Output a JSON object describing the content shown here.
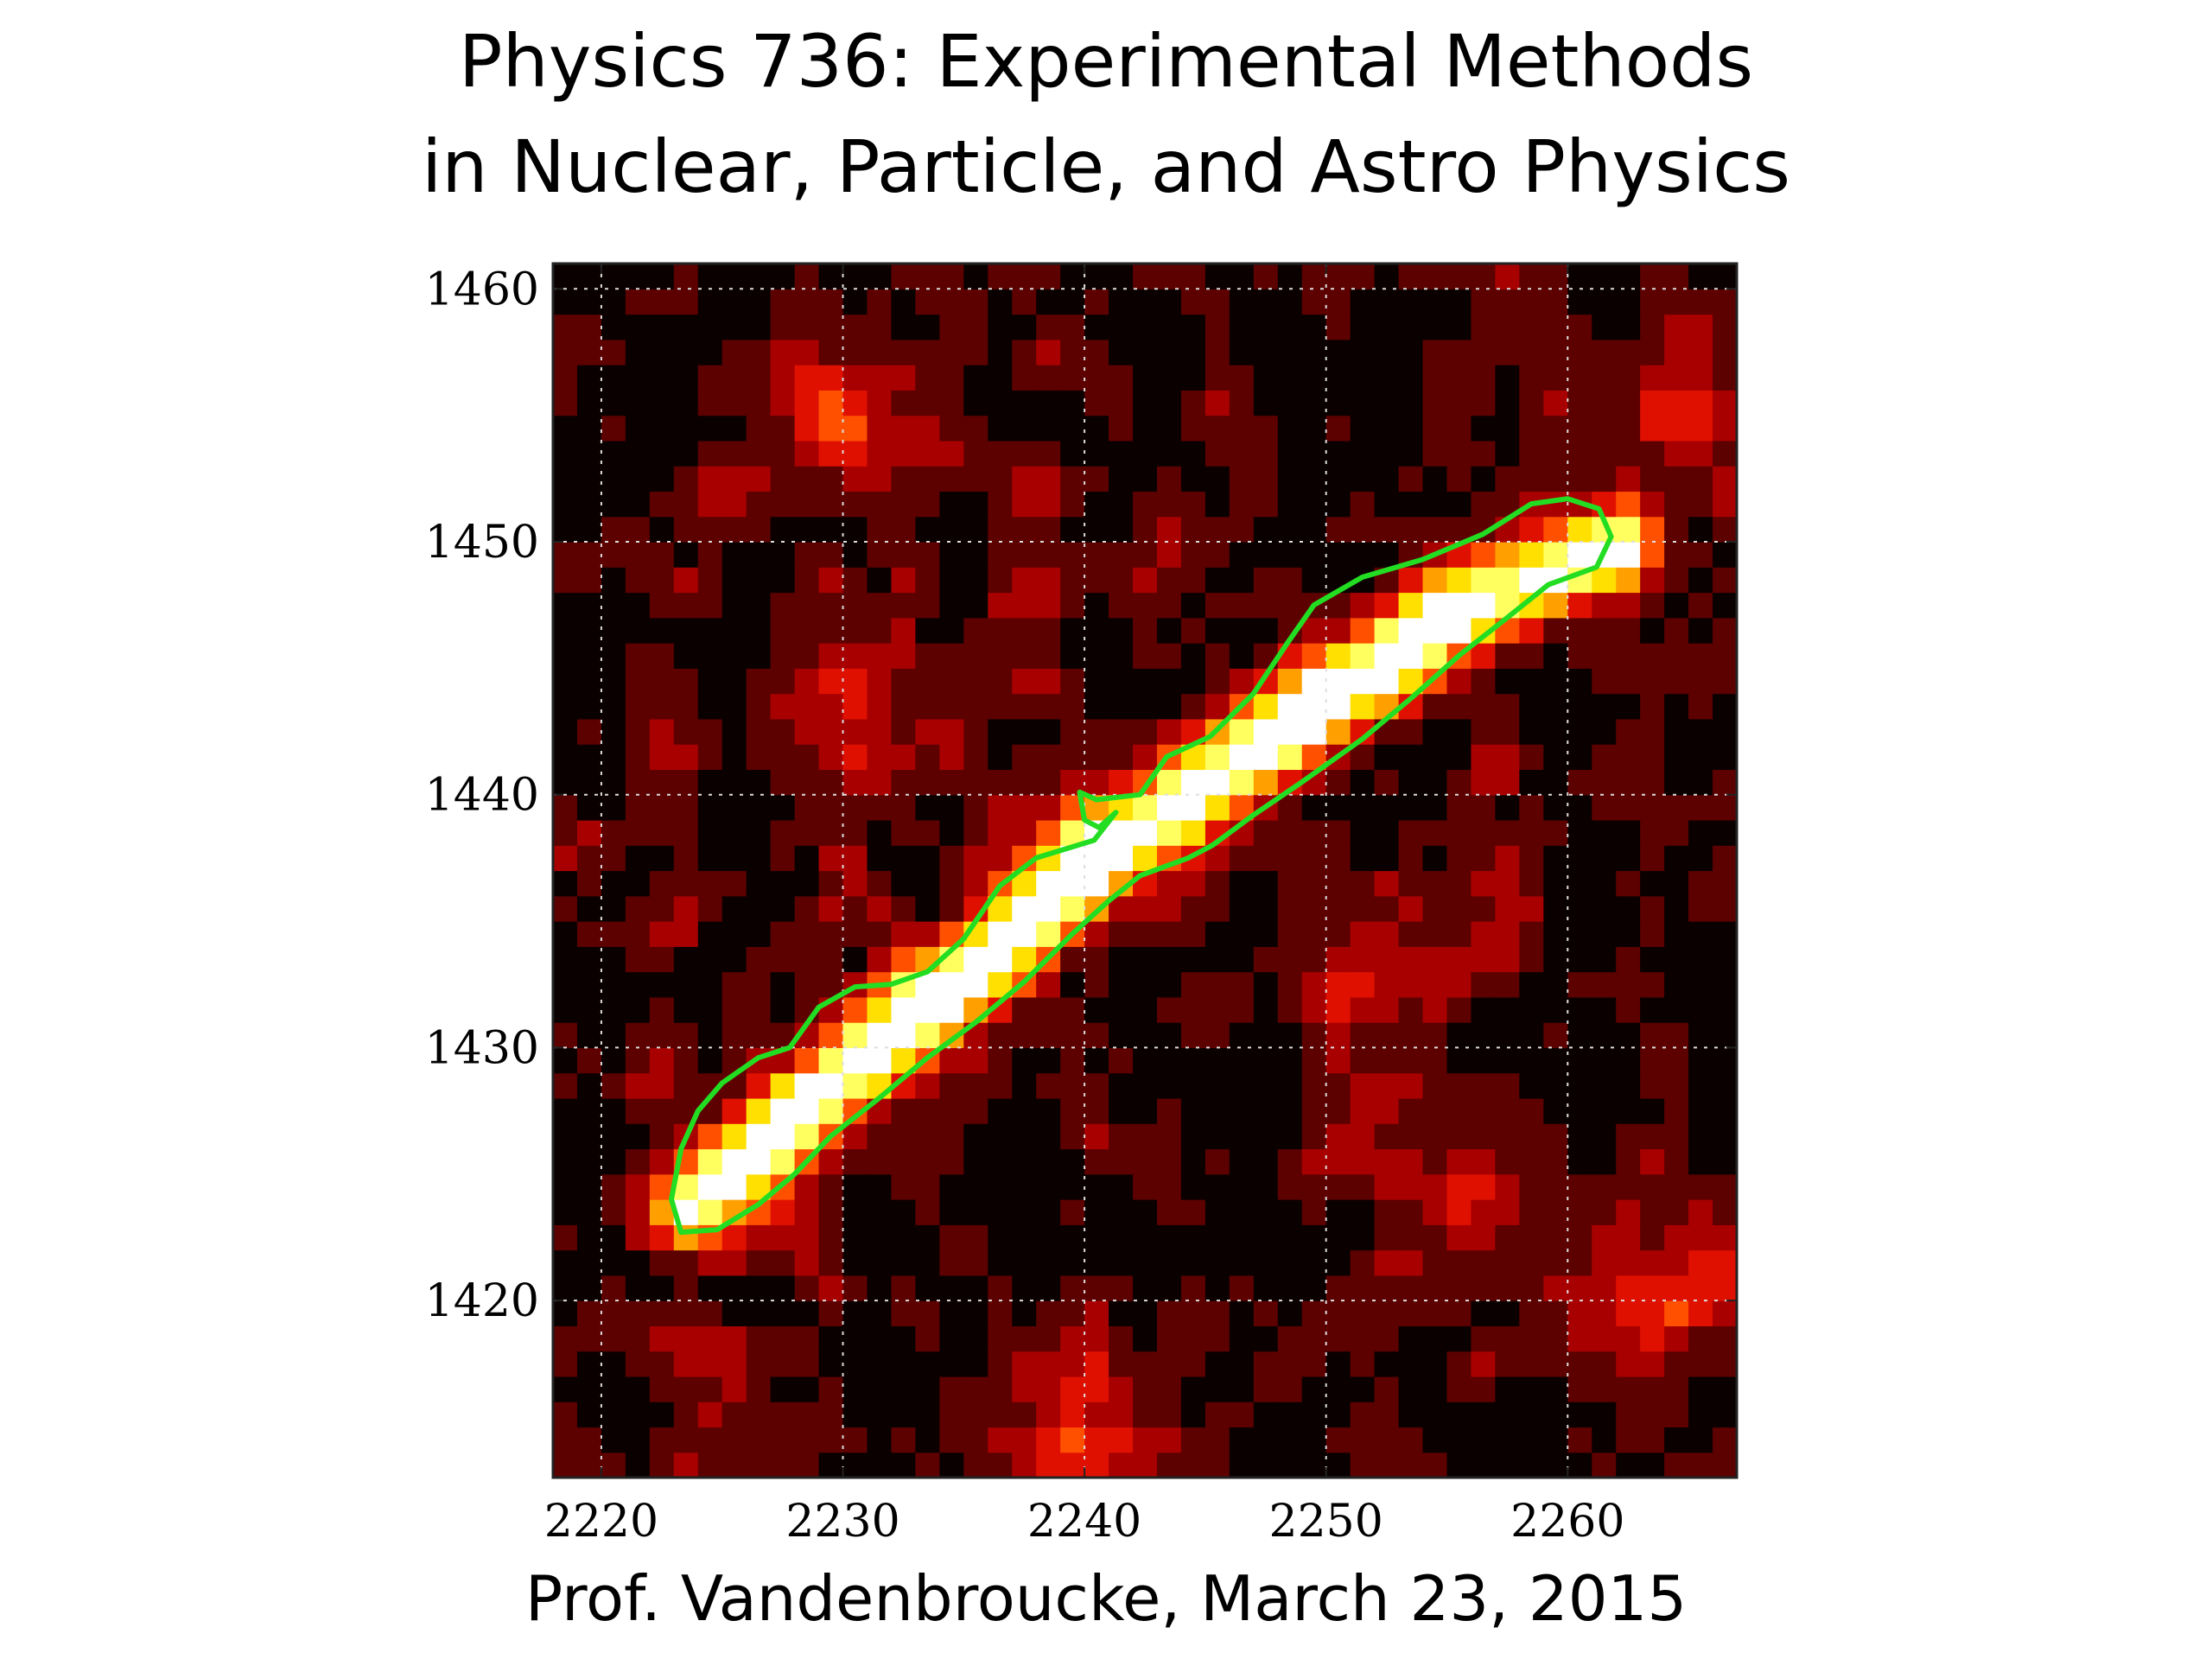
{
  "slide": {
    "title_line1": "Physics 736: Experimental Methods",
    "title_line2": "in Nuclear, Particle, and Astro Physics",
    "footer": "Prof. Vandenbroucke, March 23, 2015"
  },
  "chart_data": {
    "type": "heatmap",
    "title": "",
    "xlabel": "",
    "ylabel": "",
    "xlim": [
      2218,
      2267
    ],
    "ylim": [
      1413,
      1461
    ],
    "x_ticks": [
      2220,
      2230,
      2240,
      2250,
      2260
    ],
    "y_ticks": [
      1420,
      1430,
      1440,
      1450,
      1460
    ],
    "grid": true,
    "colormap": "hot",
    "colormap_stops": [
      "#0a0000",
      "#5c0000",
      "#a80000",
      "#e01000",
      "#ff5000",
      "#ffa000",
      "#ffe000",
      "#ffff60",
      "#ffffff"
    ],
    "track": {
      "description_points": [
        [
          2224,
          1424
        ],
        [
          2240,
          1437
        ],
        [
          2255,
          1447
        ],
        [
          2262,
          1450
        ]
      ],
      "peak_points": [
        [
          2227,
          1425
        ],
        [
          2232,
          1430
        ],
        [
          2247,
          1442
        ],
        [
          2254,
          1446
        ]
      ]
    },
    "bright_patches": [
      [
        2265,
        1455
      ],
      [
        2230,
        1443
      ],
      [
        2239,
        1438
      ],
      [
        2252,
        1433
      ],
      [
        2256,
        1424
      ],
      [
        2265,
        1421
      ],
      [
        2230,
        1455
      ],
      [
        2240,
        1415
      ]
    ],
    "contour": {
      "color": "#22dd22",
      "points": [
        [
          2223.3,
          1422.7
        ],
        [
          2224.8,
          1422.8
        ],
        [
          2226.5,
          1423.8
        ],
        [
          2228.0,
          1425.0
        ],
        [
          2229.5,
          1426.5
        ],
        [
          2231.5,
          1428.0
        ],
        [
          2233.5,
          1429.6
        ],
        [
          2235.5,
          1431.0
        ],
        [
          2237.5,
          1432.6
        ],
        [
          2239.5,
          1434.5
        ],
        [
          2241.0,
          1435.8
        ],
        [
          2242.3,
          1436.8
        ],
        [
          2244.3,
          1437.5
        ],
        [
          2245.3,
          1438.0
        ],
        [
          2247.0,
          1439.2
        ],
        [
          2249.0,
          1440.5
        ],
        [
          2251.5,
          1442.2
        ],
        [
          2253.5,
          1443.8
        ],
        [
          2255.5,
          1445.5
        ],
        [
          2257.5,
          1447.0
        ],
        [
          2259.2,
          1448.3
        ],
        [
          2261.2,
          1449.0
        ],
        [
          2261.8,
          1450.2
        ],
        [
          2261.3,
          1451.3
        ],
        [
          2260.0,
          1451.7
        ],
        [
          2258.5,
          1451.5
        ],
        [
          2256.5,
          1450.3
        ],
        [
          2254.0,
          1449.3
        ],
        [
          2251.5,
          1448.6
        ],
        [
          2249.5,
          1447.5
        ],
        [
          2248.4,
          1446.0
        ],
        [
          2247.0,
          1444.0
        ],
        [
          2245.2,
          1442.3
        ],
        [
          2243.4,
          1441.5
        ],
        [
          2242.3,
          1440.0
        ],
        [
          2240.5,
          1439.8
        ],
        [
          2239.8,
          1440.1
        ],
        [
          2240.0,
          1439.0
        ],
        [
          2240.6,
          1438.7
        ],
        [
          2241.3,
          1439.3
        ],
        [
          2240.4,
          1438.2
        ],
        [
          2238.0,
          1437.5
        ],
        [
          2236.5,
          1436.4
        ],
        [
          2235.0,
          1434.3
        ],
        [
          2233.5,
          1433.0
        ],
        [
          2232.0,
          1432.5
        ],
        [
          2230.5,
          1432.4
        ],
        [
          2229.0,
          1431.6
        ],
        [
          2227.8,
          1430.0
        ],
        [
          2226.5,
          1429.6
        ],
        [
          2225.0,
          1428.6
        ],
        [
          2224.0,
          1427.5
        ],
        [
          2223.3,
          1426.0
        ],
        [
          2222.9,
          1424.0
        ],
        [
          2223.3,
          1422.7
        ]
      ]
    }
  }
}
